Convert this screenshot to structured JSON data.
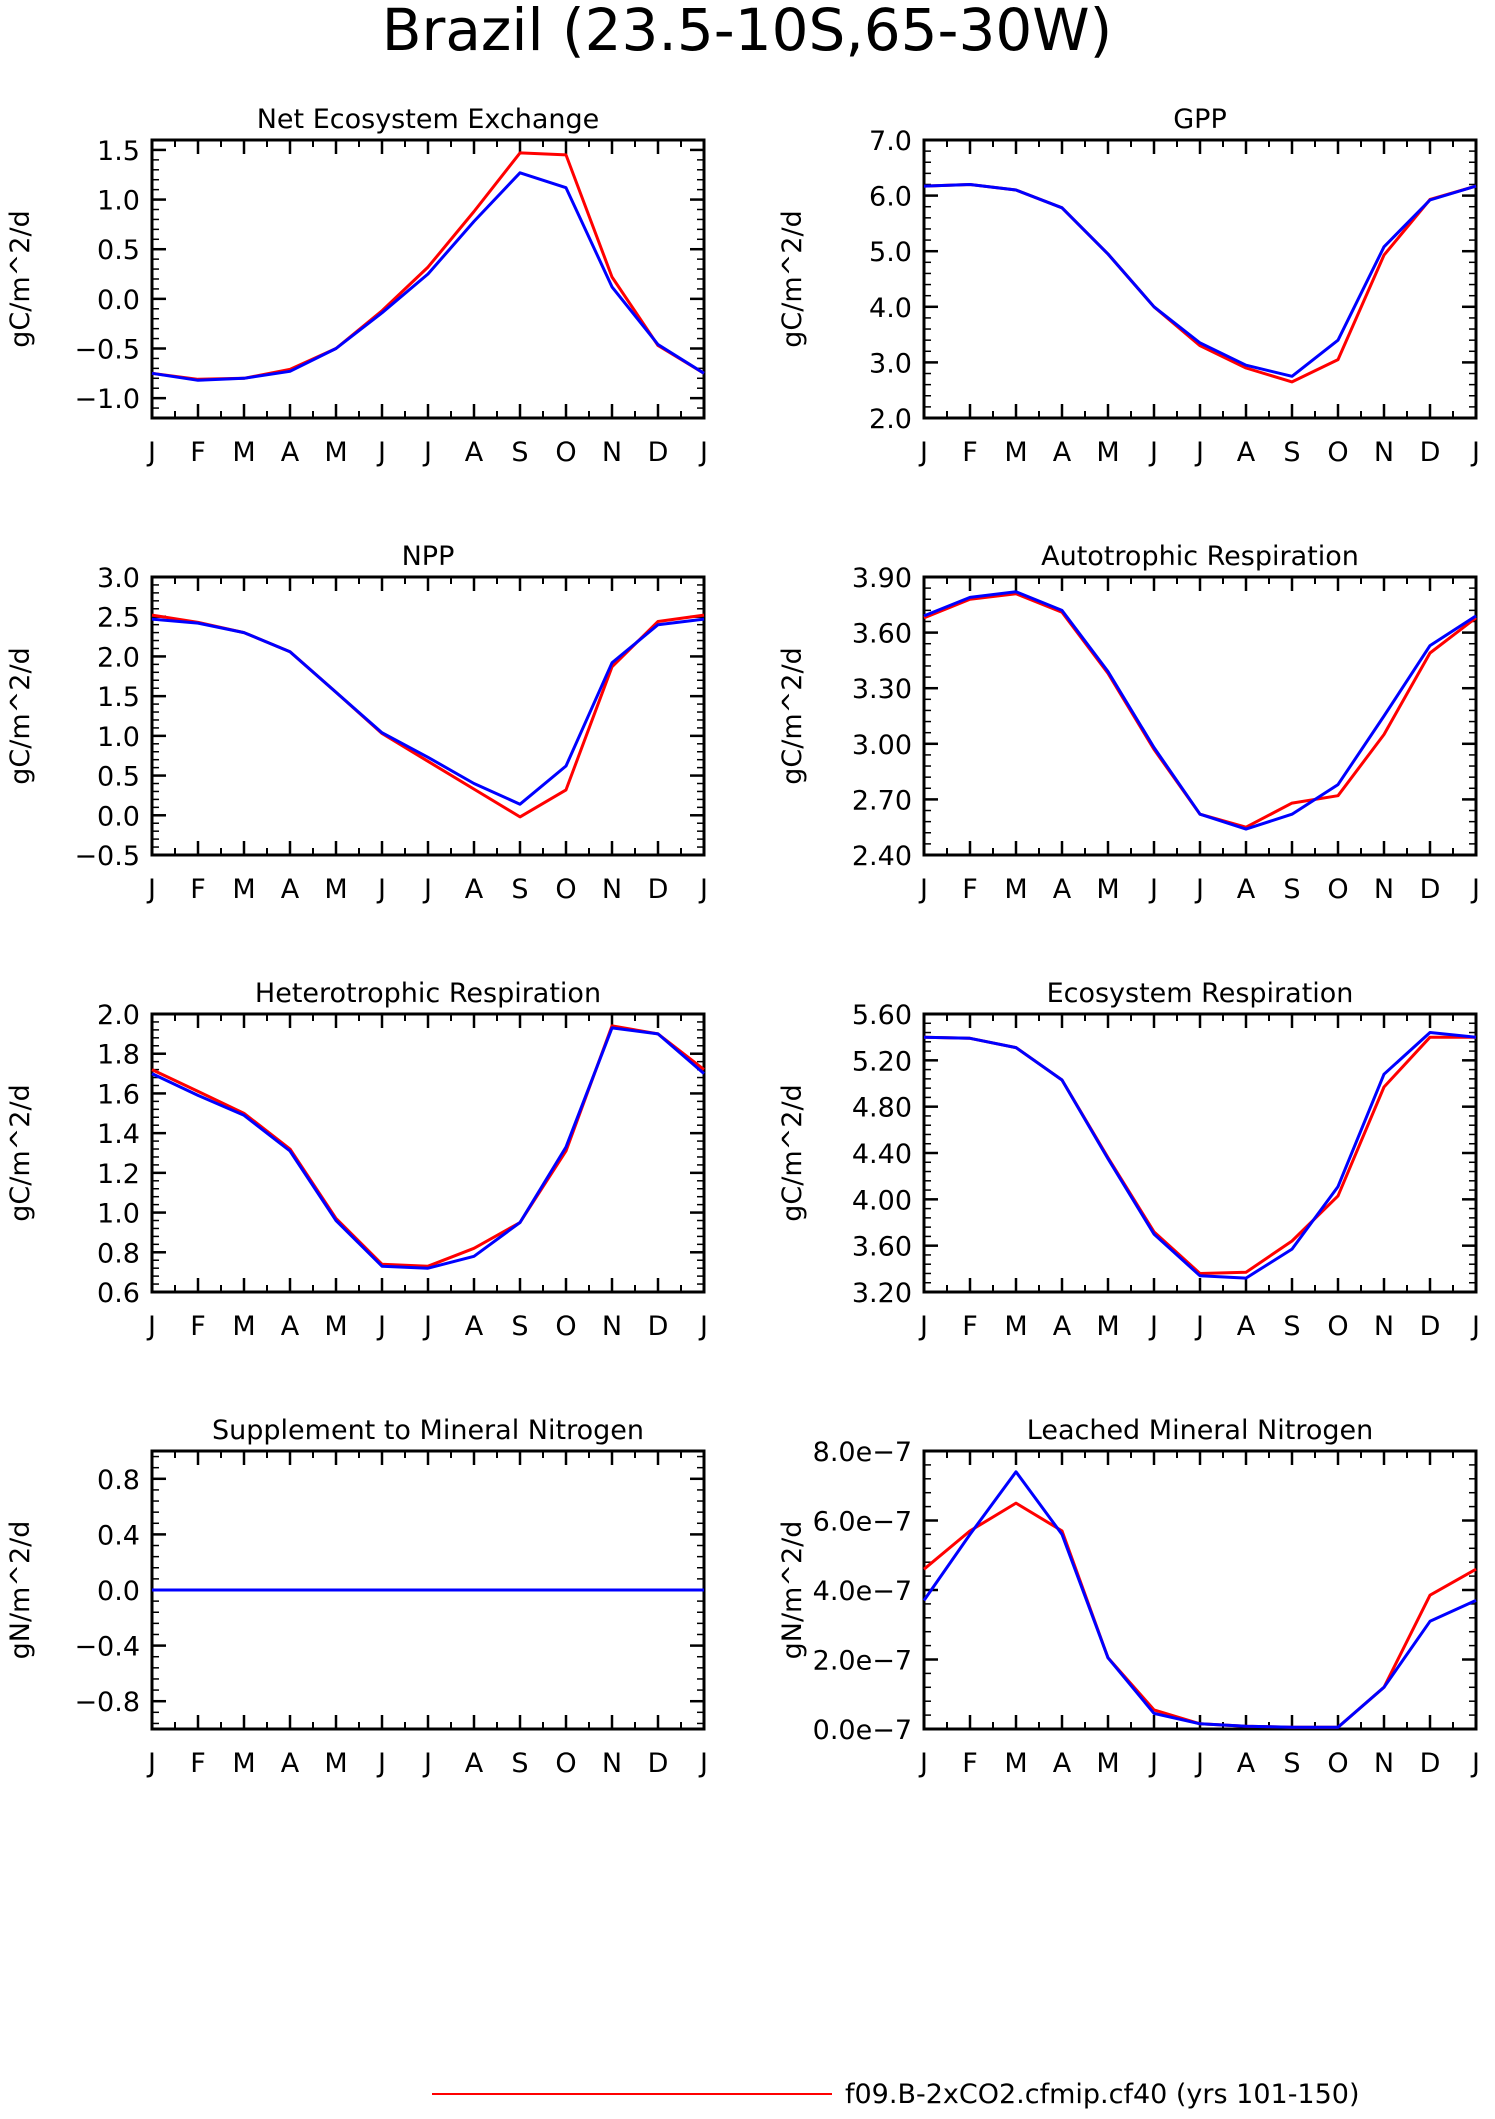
{
  "title": "Brazil (23.5-10S,65-30W)",
  "colors": {
    "case1": "#ff0000",
    "case2": "#0000ff"
  },
  "month_labels": [
    "J",
    "F",
    "M",
    "A",
    "M",
    "J",
    "J",
    "A",
    "S",
    "O",
    "N",
    "D",
    "J"
  ],
  "legend": {
    "entries": [
      {
        "label": "f09.B-2xCO2.cfmip.cf40 (yrs 101-150)",
        "color": "#ff0000"
      }
    ]
  },
  "chart_data": [
    {
      "type": "line",
      "title": "Net Ecosystem Exchange",
      "ylabel": "gC/m^2/d",
      "ylim": [
        -1.2,
        1.6
      ],
      "yticks": [
        -1.0,
        -0.5,
        0.0,
        0.5,
        1.0,
        1.5
      ],
      "ytick_labels": [
        "−1.0",
        "−0.5",
        "0.0",
        "0.5",
        "1.0",
        "1.5"
      ],
      "series": [
        {
          "color": "#ff0000",
          "values": [
            -0.75,
            -0.81,
            -0.8,
            -0.71,
            -0.5,
            -0.12,
            0.32,
            0.88,
            1.47,
            1.45,
            0.22,
            -0.47,
            -0.75
          ]
        },
        {
          "color": "#0000ff",
          "values": [
            -0.75,
            -0.82,
            -0.8,
            -0.73,
            -0.5,
            -0.14,
            0.25,
            0.78,
            1.27,
            1.12,
            0.12,
            -0.46,
            -0.75
          ]
        }
      ]
    },
    {
      "type": "line",
      "title": "GPP",
      "ylabel": "gC/m^2/d",
      "ylim": [
        2.0,
        7.0
      ],
      "yticks": [
        2.0,
        3.0,
        4.0,
        5.0,
        6.0,
        7.0
      ],
      "ytick_labels": [
        "2.0",
        "3.0",
        "4.0",
        "5.0",
        "6.0",
        "7.0"
      ],
      "series": [
        {
          "color": "#ff0000",
          "values": [
            6.17,
            6.2,
            6.1,
            5.78,
            4.95,
            4.0,
            3.3,
            2.9,
            2.65,
            3.05,
            4.93,
            5.93,
            6.17
          ]
        },
        {
          "color": "#0000ff",
          "values": [
            6.17,
            6.2,
            6.1,
            5.78,
            4.95,
            4.0,
            3.35,
            2.95,
            2.75,
            3.4,
            5.08,
            5.92,
            6.17
          ]
        }
      ]
    },
    {
      "type": "line",
      "title": "NPP",
      "ylabel": "gC/m^2/d",
      "ylim": [
        -0.5,
        3.0
      ],
      "yticks": [
        -0.5,
        0.0,
        0.5,
        1.0,
        1.5,
        2.0,
        2.5,
        3.0
      ],
      "ytick_labels": [
        "−0.5",
        "0.0",
        "0.5",
        "1.0",
        "1.5",
        "2.0",
        "2.5",
        "3.0"
      ],
      "series": [
        {
          "color": "#ff0000",
          "values": [
            2.52,
            2.43,
            2.3,
            2.06,
            1.55,
            1.03,
            0.68,
            0.33,
            -0.02,
            0.32,
            1.87,
            2.44,
            2.52
          ]
        },
        {
          "color": "#0000ff",
          "values": [
            2.47,
            2.42,
            2.3,
            2.06,
            1.55,
            1.04,
            0.73,
            0.4,
            0.14,
            0.62,
            1.92,
            2.4,
            2.47
          ]
        }
      ]
    },
    {
      "type": "line",
      "title": "Autotrophic Respiration",
      "ylabel": "gC/m^2/d",
      "ylim": [
        2.4,
        3.9
      ],
      "yticks": [
        2.4,
        2.7,
        3.0,
        3.3,
        3.6,
        3.9
      ],
      "ytick_labels": [
        "2.40",
        "2.70",
        "3.00",
        "3.30",
        "3.60",
        "3.90"
      ],
      "series": [
        {
          "color": "#ff0000",
          "values": [
            3.68,
            3.78,
            3.81,
            3.71,
            3.38,
            2.97,
            2.62,
            2.55,
            2.68,
            2.72,
            3.05,
            3.49,
            3.68
          ]
        },
        {
          "color": "#0000ff",
          "values": [
            3.69,
            3.79,
            3.82,
            3.72,
            3.39,
            2.98,
            2.62,
            2.54,
            2.62,
            2.78,
            3.15,
            3.53,
            3.69
          ]
        }
      ]
    },
    {
      "type": "line",
      "title": "Heterotrophic Respiration",
      "ylabel": "gC/m^2/d",
      "ylim": [
        0.6,
        2.0
      ],
      "yticks": [
        0.6,
        0.8,
        1.0,
        1.2,
        1.4,
        1.6,
        1.8,
        2.0
      ],
      "ytick_labels": [
        "0.6",
        "0.8",
        "1.0",
        "1.2",
        "1.4",
        "1.6",
        "1.8",
        "2.0"
      ],
      "series": [
        {
          "color": "#ff0000",
          "values": [
            1.72,
            1.61,
            1.5,
            1.32,
            0.97,
            0.74,
            0.73,
            0.82,
            0.95,
            1.31,
            1.94,
            1.9,
            1.72
          ]
        },
        {
          "color": "#0000ff",
          "values": [
            1.7,
            1.59,
            1.49,
            1.31,
            0.96,
            0.73,
            0.72,
            0.78,
            0.95,
            1.33,
            1.93,
            1.9,
            1.7
          ]
        }
      ]
    },
    {
      "type": "line",
      "title": "Ecosystem Respiration",
      "ylabel": "gC/m^2/d",
      "ylim": [
        3.2,
        5.6
      ],
      "yticks": [
        3.2,
        3.6,
        4.0,
        4.4,
        4.8,
        5.2,
        5.6
      ],
      "ytick_labels": [
        "3.20",
        "3.60",
        "4.00",
        "4.40",
        "4.80",
        "5.20",
        "5.60"
      ],
      "series": [
        {
          "color": "#ff0000",
          "values": [
            5.4,
            5.39,
            5.31,
            5.03,
            4.36,
            3.72,
            3.36,
            3.37,
            3.64,
            4.03,
            4.97,
            5.4,
            5.4
          ]
        },
        {
          "color": "#0000ff",
          "values": [
            5.4,
            5.39,
            5.31,
            5.03,
            4.35,
            3.7,
            3.34,
            3.32,
            3.57,
            4.11,
            5.08,
            5.44,
            5.4
          ]
        }
      ]
    },
    {
      "type": "line",
      "title": "Supplement to Mineral Nitrogen",
      "ylabel": "gN/m^2/d",
      "ylim": [
        -1.0,
        1.0
      ],
      "yticks": [
        -0.8,
        -0.4,
        0.0,
        0.4,
        0.8
      ],
      "ytick_labels": [
        "−0.8",
        "−0.4",
        "0.0",
        "0.4",
        "0.8"
      ],
      "series": [
        {
          "color": "#ff0000",
          "values": [
            0,
            0,
            0,
            0,
            0,
            0,
            0,
            0,
            0,
            0,
            0,
            0,
            0
          ]
        },
        {
          "color": "#0000ff",
          "values": [
            0,
            0,
            0,
            0,
            0,
            0,
            0,
            0,
            0,
            0,
            0,
            0,
            0
          ]
        }
      ]
    },
    {
      "type": "line",
      "title": "Leached Mineral Nitrogen",
      "ylabel": "gN/m^2/d",
      "ylim": [
        0,
        8e-07
      ],
      "yticks": [
        0,
        2e-07,
        4e-07,
        6e-07,
        8e-07
      ],
      "ytick_labels": [
        "0.0e−7",
        "2.0e−7",
        "4.0e−7",
        "6.0e−7",
        "8.0e−7"
      ],
      "series": [
        {
          "color": "#ff0000",
          "values": [
            4.6e-07,
            5.7e-07,
            6.5e-07,
            5.7e-07,
            2.05e-07,
            5.5e-08,
            1.5e-08,
            8e-09,
            5e-09,
            5e-09,
            1.2e-07,
            3.85e-07,
            4.6e-07
          ]
        },
        {
          "color": "#0000ff",
          "values": [
            3.7e-07,
            5.6e-07,
            7.4e-07,
            5.6e-07,
            2.05e-07,
            4.5e-08,
            1.5e-08,
            8e-09,
            5e-09,
            5e-09,
            1.2e-07,
            3.1e-07,
            3.7e-07
          ]
        }
      ]
    }
  ]
}
